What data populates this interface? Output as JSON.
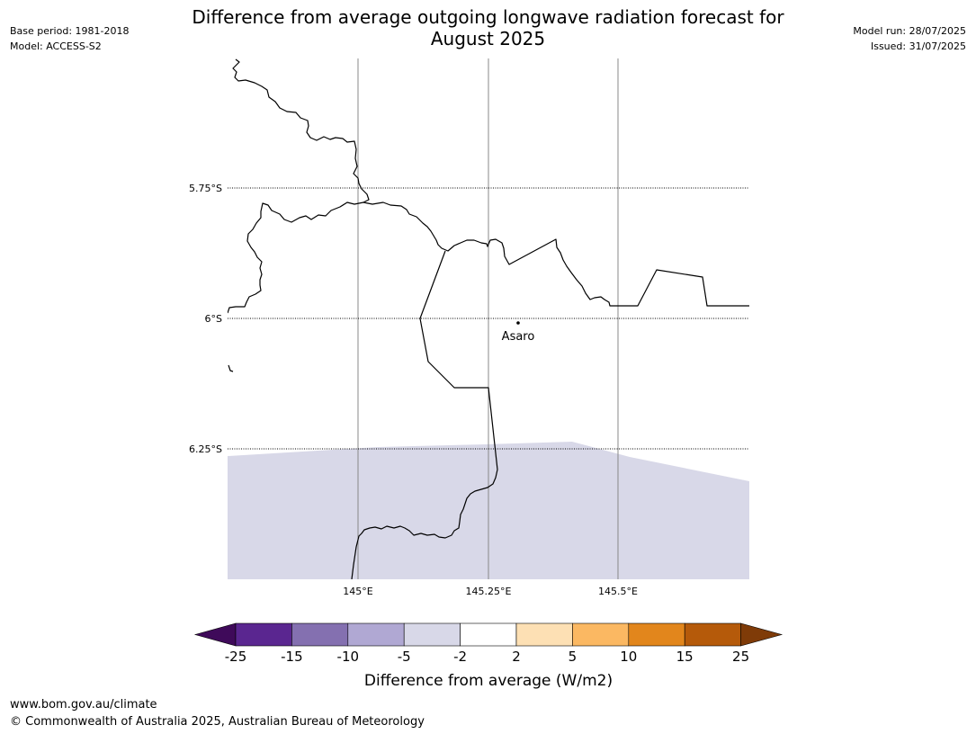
{
  "title": {
    "line1": "Difference from average outgoing longwave radiation forecast for",
    "line2": "August 2025"
  },
  "meta": {
    "base_period": "Base period: 1981-2018",
    "model": "Model: ACCESS-S2",
    "model_run": "Model run: 28/07/2025",
    "issued": "Issued: 31/07/2025"
  },
  "map": {
    "lat_labels": [
      "5.75°S",
      "6°S",
      "6.25°S"
    ],
    "lon_labels": [
      "145°E",
      "145.25°E",
      "145.5°E"
    ],
    "place": {
      "name": "Asaro",
      "lat": -6.01,
      "lon": 145.3
    },
    "region_fill_color": "#d8d8e8",
    "anomaly_region_category": "-5 to -2"
  },
  "colorbar": {
    "tick_labels": [
      "-25",
      "-15",
      "-10",
      "-5",
      "-2",
      "2",
      "5",
      "10",
      "15",
      "25"
    ],
    "label": "Difference from average (W/m2)",
    "colors": [
      "#3f0a5a",
      "#5a2690",
      "#8470b0",
      "#b0a8d3",
      "#d8d8e8",
      "#ffffff",
      "#fde0b4",
      "#fbb862",
      "#e2861c",
      "#b55a0a",
      "#7f3b08"
    ]
  },
  "footer": {
    "url": "www.bom.gov.au/climate",
    "copyright": "© Commonwealth of Australia 2025, Australian Bureau of Meteorology"
  }
}
